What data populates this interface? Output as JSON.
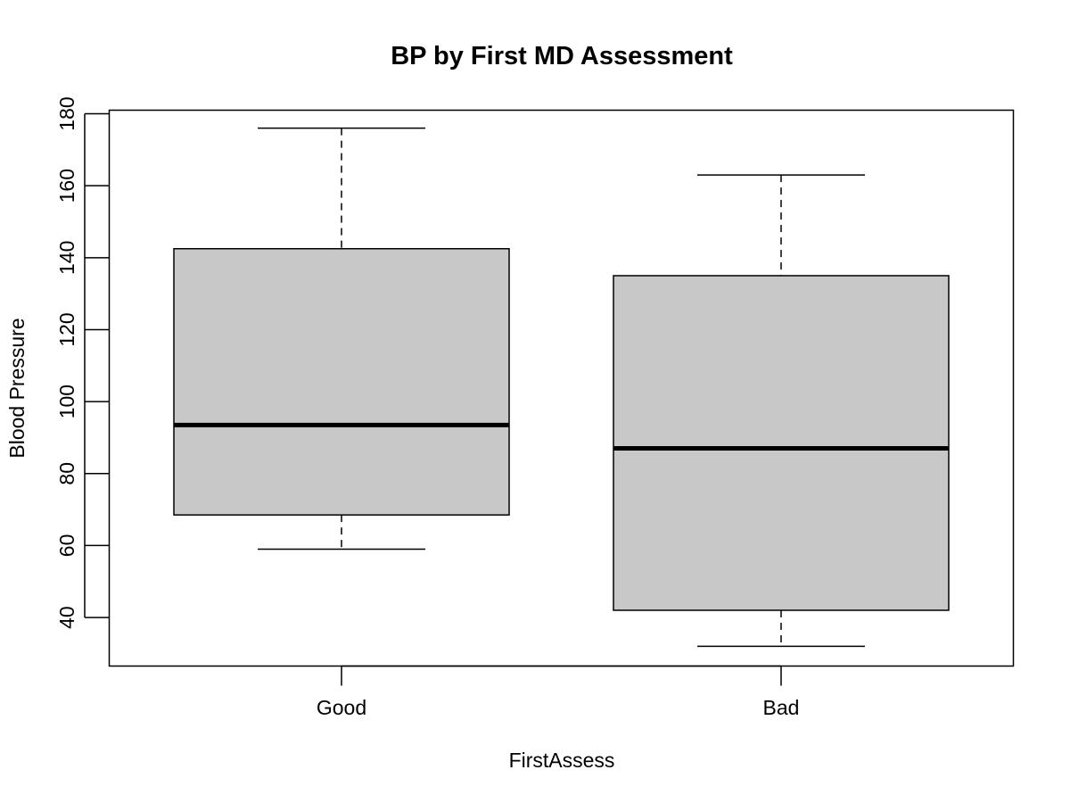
{
  "chart_data": {
    "type": "boxplot",
    "title": "BP by First MD Assessment",
    "xlabel": "FirstAssess",
    "ylabel": "Blood Pressure",
    "categories": [
      "Good",
      "Bad"
    ],
    "yticks": [
      40,
      60,
      80,
      100,
      120,
      140,
      160,
      180
    ],
    "ylim": [
      26.5,
      181
    ],
    "grid": false,
    "box_fill": "#c8c8c8",
    "boxes": [
      {
        "category": "Good",
        "whisker_low": 59,
        "q1": 68.5,
        "median": 93.5,
        "q3": 142.5,
        "whisker_high": 176
      },
      {
        "category": "Bad",
        "whisker_low": 32,
        "q1": 42,
        "median": 87,
        "q3": 135,
        "whisker_high": 163
      }
    ]
  }
}
